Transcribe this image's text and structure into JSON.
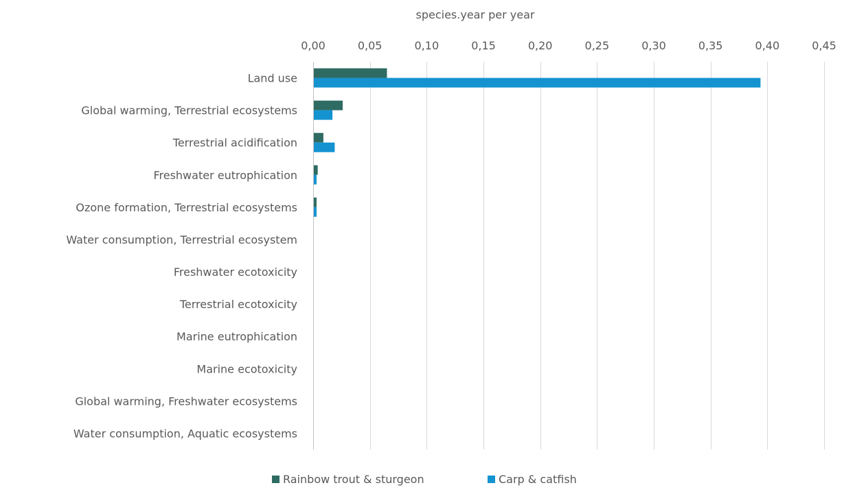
{
  "chart_data": {
    "type": "bar",
    "orientation": "horizontal",
    "title": "",
    "xlabel": "species.year per year",
    "ylabel": "",
    "xlim": [
      0,
      0.45
    ],
    "x_ticks": [
      0,
      0.05,
      0.1,
      0.15,
      0.2,
      0.25,
      0.3,
      0.35,
      0.4,
      0.45
    ],
    "x_tick_labels": [
      "0,00",
      "0,05",
      "0,10",
      "0,15",
      "0,20",
      "0,25",
      "0,30",
      "0,35",
      "0,40",
      "0,45"
    ],
    "x_axis_position": "top",
    "grid": true,
    "legend_position": "bottom",
    "categories": [
      "Land use",
      "Global warming, Terrestrial ecosystems",
      "Terrestrial acidification",
      "Freshwater eutrophication",
      "Ozone formation, Terrestrial ecosystems",
      "Water consumption, Terrestrial ecosystem",
      "Freshwater ecotoxicity",
      "Terrestrial ecotoxicity",
      "Marine eutrophication",
      "Marine ecotoxicity",
      "Global warming, Freshwater ecosystems",
      "Water consumption, Aquatic ecosystems"
    ],
    "series": [
      {
        "name": "Rainbow trout & sturgeon",
        "color": "#2e6b63",
        "values": [
          0.065,
          0.026,
          0.009,
          0.004,
          0.003,
          0.0003,
          0.0002,
          0.0002,
          0.0002,
          0.0001,
          0.0001,
          0.0001
        ]
      },
      {
        "name": "Carp & catfish",
        "color": "#1593d1",
        "values": [
          0.394,
          0.017,
          0.019,
          0.003,
          0.003,
          0.0004,
          0.0003,
          0.0002,
          0.0002,
          0.0001,
          0.0001,
          0.0001
        ]
      }
    ]
  }
}
